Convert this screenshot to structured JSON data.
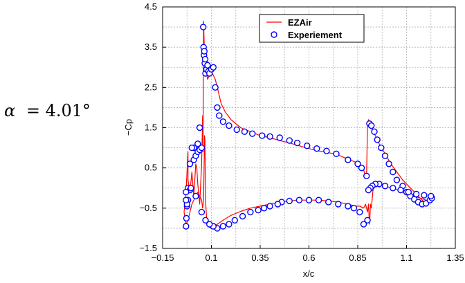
{
  "chart_data": {
    "type": "line",
    "annotation": {
      "symbol": "α",
      "equals": "= 4.01°"
    },
    "xlabel": "x/c",
    "ylabel": "−Cp",
    "xlim": [
      -0.15,
      1.35
    ],
    "ylim": [
      -1.5,
      4.5
    ],
    "x_ticks": [
      -0.15,
      0.1,
      0.35,
      0.6,
      0.85,
      1.1,
      1.35
    ],
    "x_tick_labels": [
      "−0.15",
      "0.1",
      "0.35",
      "0.6",
      "0.85",
      "1.1",
      "1.35"
    ],
    "y_ticks": [
      -1.5,
      -0.5,
      0.5,
      1.5,
      2.5,
      3.5,
      4.5
    ],
    "y_tick_labels": [
      "−1.5",
      "−0.5",
      "0.5",
      "1.5",
      "2.5",
      "3.5",
      "4.5"
    ],
    "grid": true,
    "legend_position": "top-right",
    "colors": {
      "line": "#ff0000",
      "marker": "#0000ff"
    },
    "series": [
      {
        "name": "EZAir",
        "style": "line",
        "x": [
          -0.04,
          -0.03,
          -0.02,
          -0.02,
          -0.01,
          0.0,
          0.01,
          0.02,
          0.025,
          0.03,
          0.04,
          0.05,
          0.055,
          0.057,
          0.06,
          0.063,
          0.066,
          0.07,
          0.075,
          0.08,
          0.09,
          0.1,
          0.11,
          0.12,
          0.13,
          0.15,
          0.17,
          0.2,
          0.25,
          0.3,
          0.35,
          0.4,
          0.45,
          0.5,
          0.55,
          0.6,
          0.65,
          0.7,
          0.75,
          0.8,
          0.85,
          0.87,
          0.88,
          0.89,
          0.895,
          0.9,
          0.905,
          0.91,
          0.92,
          0.94,
          0.96,
          0.99,
          1.02,
          1.05,
          1.08,
          1.11,
          1.14,
          1.17,
          1.19,
          1.21,
          1.22,
          1.2,
          1.17,
          1.14,
          1.1,
          1.06,
          1.02,
          0.98,
          0.95,
          0.93,
          0.92,
          0.915,
          0.912,
          0.91,
          0.905,
          0.9,
          0.895,
          0.89,
          0.88,
          0.86,
          0.84,
          0.8,
          0.75,
          0.7,
          0.65,
          0.6,
          0.55,
          0.5,
          0.45,
          0.4,
          0.35,
          0.3,
          0.25,
          0.2,
          0.16,
          0.13,
          0.11,
          0.1,
          0.09,
          0.08,
          0.075,
          0.07,
          0.067,
          0.065,
          0.063,
          0.06,
          0.055,
          0.05,
          0.04,
          0.03,
          0.02,
          0.01,
          0.0,
          -0.01,
          -0.02,
          -0.03,
          -0.04
        ],
        "y": [
          -0.6,
          -0.1,
          0.9,
          0.2,
          -0.1,
          0.4,
          -0.2,
          0.6,
          0.5,
          0.1,
          -0.4,
          0.6,
          1.8,
          0.9,
          4.15,
          3.6,
          3.2,
          3.0,
          2.9,
          2.7,
          2.8,
          2.9,
          2.8,
          2.7,
          2.5,
          2.1,
          1.9,
          1.7,
          1.5,
          1.4,
          1.3,
          1.25,
          1.18,
          1.12,
          1.05,
          0.98,
          0.92,
          0.88,
          0.82,
          0.72,
          0.62,
          0.55,
          0.45,
          0.3,
          0.25,
          1.6,
          1.7,
          1.6,
          1.5,
          1.3,
          1.1,
          0.85,
          0.6,
          0.4,
          0.2,
          0.05,
          -0.1,
          -0.25,
          -0.35,
          -0.4,
          -0.35,
          -0.3,
          -0.25,
          -0.2,
          -0.15,
          -0.05,
          0.0,
          0.08,
          0.15,
          0.05,
          -0.5,
          -0.4,
          -0.8,
          -0.9,
          -0.4,
          -0.6,
          -0.5,
          -0.4,
          -0.5,
          -0.45,
          -0.45,
          -0.4,
          -0.35,
          -0.32,
          -0.3,
          -0.3,
          -0.3,
          -0.32,
          -0.35,
          -0.4,
          -0.45,
          -0.5,
          -0.58,
          -0.68,
          -0.8,
          -0.9,
          -0.95,
          -1.0,
          -0.98,
          -0.9,
          -0.7,
          -0.3,
          1.2,
          1.3,
          0.7,
          -0.3,
          -0.5,
          -0.3,
          -0.2,
          -0.1,
          -0.2,
          -0.3,
          -0.4,
          -0.6,
          -0.8,
          -0.9,
          -0.6
        ]
      },
      {
        "name": "Experiement",
        "style": "markers",
        "x": [
          -0.03,
          -0.028,
          -0.025,
          -0.02,
          -0.01,
          -0.005,
          0.01,
          0.02,
          0.03,
          0.04,
          0.05,
          0.058,
          0.06,
          0.062,
          0.064,
          0.066,
          0.068,
          0.07,
          0.075,
          0.08,
          0.085,
          0.09,
          0.1,
          0.11,
          0.12,
          0.13,
          0.14,
          0.16,
          0.19,
          0.23,
          0.27,
          0.31,
          0.36,
          0.4,
          0.45,
          0.5,
          0.54,
          0.59,
          0.64,
          0.69,
          0.74,
          0.8,
          0.85,
          0.87,
          0.895,
          0.91,
          0.92,
          0.935,
          0.95,
          0.97,
          0.99,
          1.01,
          1.03,
          1.05,
          1.08,
          1.1,
          1.12,
          1.14,
          1.16,
          1.18,
          1.2,
          1.22,
          1.23,
          1.225,
          1.19,
          1.15,
          1.11,
          1.07,
          1.03,
          0.99,
          0.96,
          0.94,
          0.925,
          0.915,
          0.905,
          0.9,
          0.88,
          0.86,
          0.83,
          0.8,
          0.75,
          0.7,
          0.65,
          0.6,
          0.55,
          0.5,
          0.46,
          0.44,
          0.4,
          0.37,
          0.34,
          0.3,
          0.26,
          0.22,
          0.19,
          0.16,
          0.13,
          0.11,
          0.09,
          0.07,
          0.05,
          0.04,
          0.03,
          0.02,
          0.01,
          0.0,
          -0.01,
          -0.02,
          -0.025,
          -0.03,
          -0.03
        ],
        "y": [
          -0.95,
          -0.75,
          -0.45,
          0.0,
          -0.05,
          0.0,
          0.7,
          0.8,
          0.9,
          0.95,
          1.0,
          4.0,
          3.5,
          3.3,
          3.4,
          3.1,
          3.2,
          2.85,
          2.95,
          3.05,
          2.9,
          2.85,
          2.95,
          3.0,
          2.5,
          2.0,
          1.8,
          1.65,
          1.55,
          1.45,
          1.4,
          1.35,
          1.3,
          1.28,
          1.25,
          1.18,
          1.12,
          1.05,
          0.98,
          0.92,
          0.85,
          0.7,
          0.6,
          0.5,
          0.3,
          1.6,
          1.55,
          1.4,
          1.2,
          1.0,
          0.8,
          0.6,
          0.4,
          0.2,
          0.05,
          -0.1,
          -0.2,
          -0.28,
          -0.35,
          -0.4,
          -0.38,
          -0.3,
          -0.25,
          -0.2,
          -0.18,
          -0.15,
          -0.1,
          -0.05,
          0.0,
          0.05,
          0.1,
          0.1,
          0.05,
          0.0,
          -0.05,
          -0.8,
          -0.9,
          -0.6,
          -0.5,
          -0.45,
          -0.4,
          -0.35,
          -0.3,
          -0.3,
          -0.3,
          -0.32,
          -0.35,
          -0.4,
          -0.45,
          -0.5,
          -0.55,
          -0.6,
          -0.7,
          -0.8,
          -0.9,
          -0.95,
          -1.0,
          -0.95,
          -0.9,
          -0.8,
          -0.6,
          1.5,
          1.1,
          -0.2,
          1.0,
          1.0,
          0.6,
          -0.3,
          -0.4,
          -0.3,
          -0.1
        ]
      }
    ]
  }
}
